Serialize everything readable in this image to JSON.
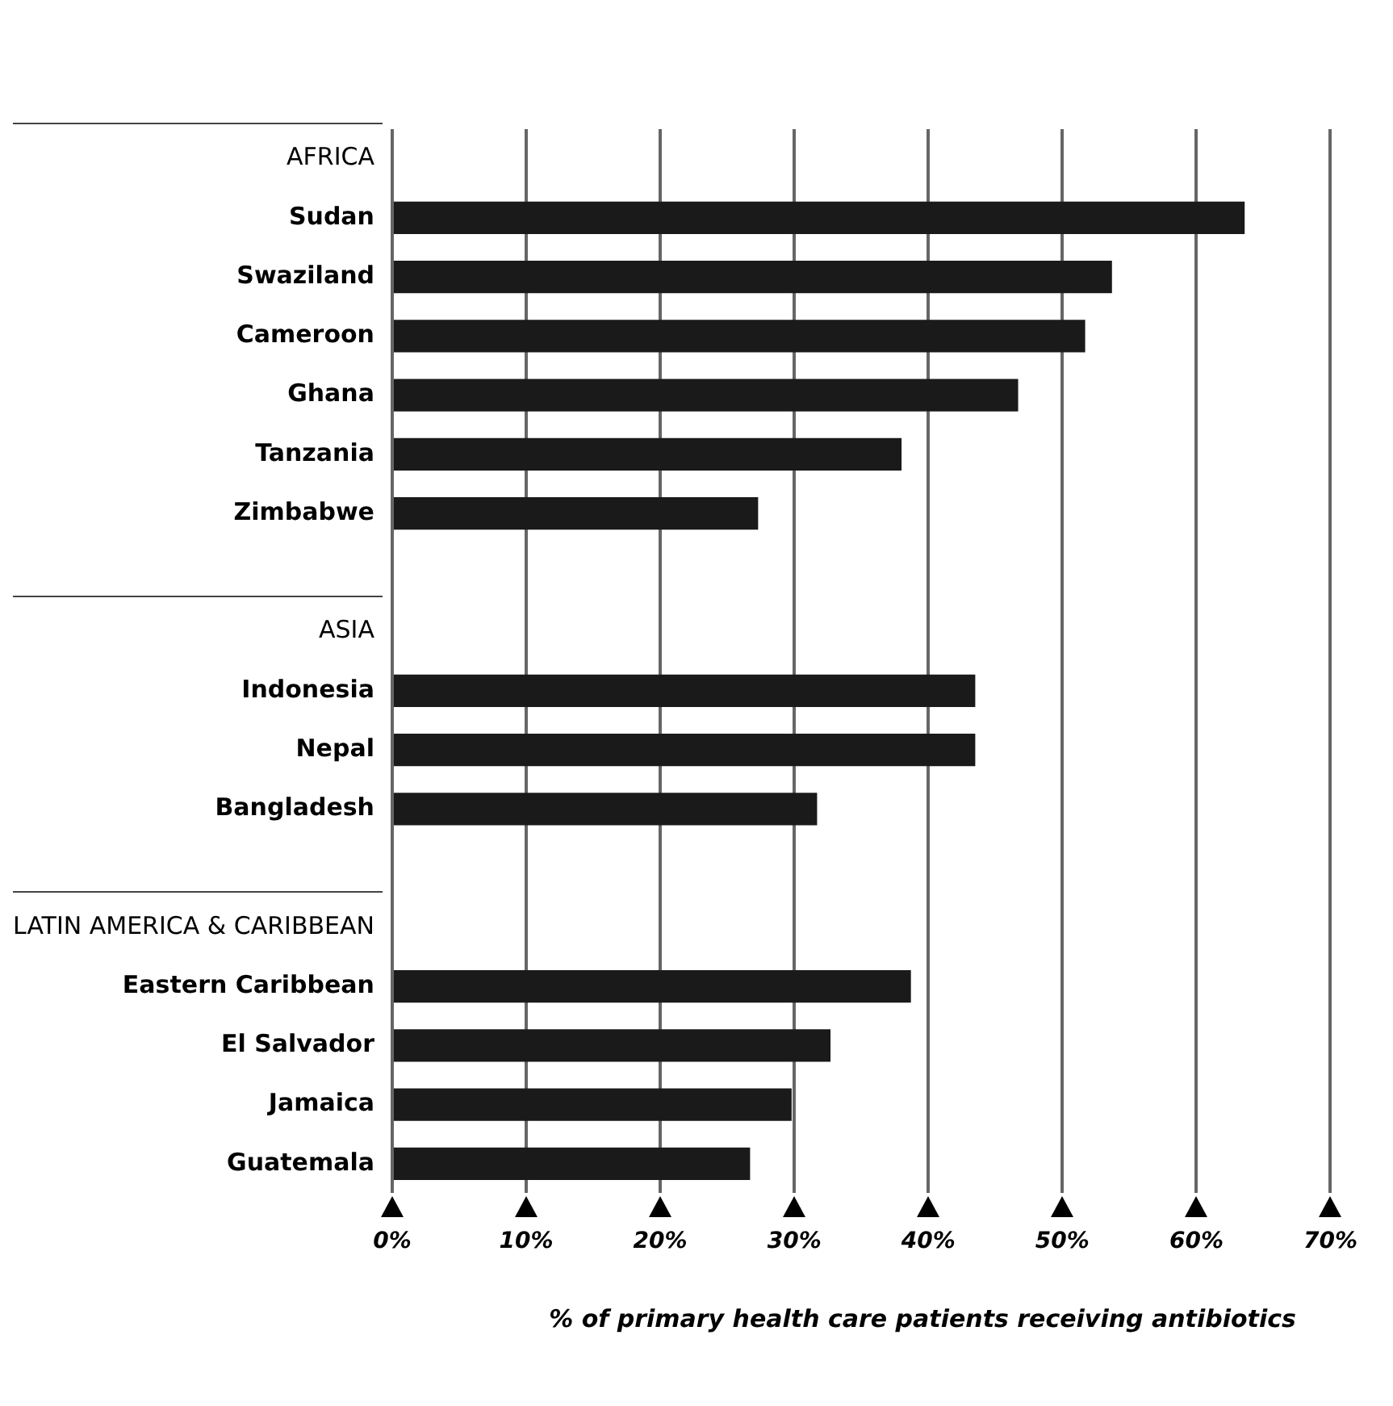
{
  "chart_data": {
    "type": "bar",
    "orientation": "horizontal",
    "xlabel": "% of primary health care patients receiving antibiotics",
    "categories": [
      "AFRICA",
      "Sudan",
      "Swaziland",
      "Cameroon",
      "Ghana",
      "Tanzania",
      "Zimbabwe",
      null,
      "ASIA",
      "Indonesia",
      "Nepal",
      "Bangladesh",
      null,
      "LATIN AMERICA & CARIBBEAN",
      "Eastern Caribbean",
      "El Salvador",
      "Jamaica",
      "Guatemala"
    ],
    "values": [
      null,
      63.6,
      53.7,
      51.7,
      46.7,
      38,
      27.3,
      null,
      null,
      43.5,
      43.5,
      31.7,
      null,
      null,
      38.7,
      32.7,
      29.8,
      26.7
    ],
    "color": "#1a1a1a",
    "xlim": [
      0,
      70
    ],
    "xticks": [
      {
        "value": 0,
        "label": "0%"
      },
      {
        "value": 10,
        "label": "10%"
      },
      {
        "value": 20,
        "label": "20%"
      },
      {
        "value": 30,
        "label": "30%"
      },
      {
        "value": 40,
        "label": "40%"
      },
      {
        "value": 50,
        "label": "50%"
      },
      {
        "value": 60,
        "label": "60%"
      },
      {
        "value": 70,
        "label": "70%"
      }
    ],
    "grid": "x",
    "legend": false
  }
}
